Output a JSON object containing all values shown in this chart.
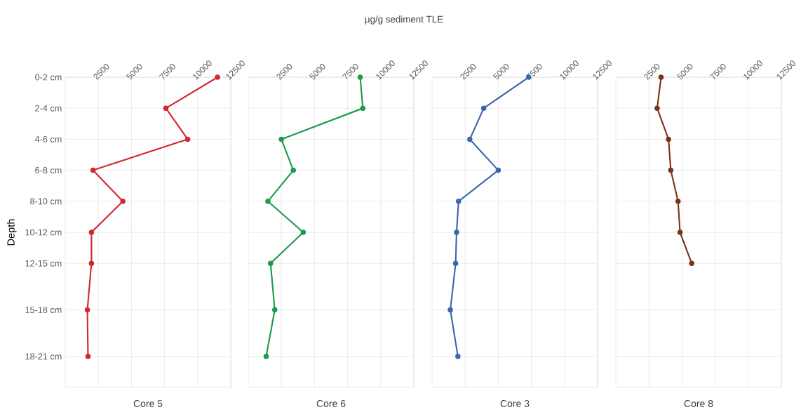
{
  "chart_data": [
    {
      "type": "line",
      "orientation": "horizontal",
      "xlabel": "Core 5",
      "ylabel": "Depth",
      "xlim": [
        0,
        12500
      ],
      "xticks": [
        2500,
        5000,
        7500,
        10000,
        12500
      ],
      "categories": [
        "0-2 cm",
        null,
        "2-4 cm",
        null,
        "4-6 cm",
        null,
        "6-8 cm",
        null,
        "8-10 cm",
        null,
        "10-12 cm",
        null,
        "12-15 cm",
        null,
        null,
        "15-18 cm",
        null,
        null,
        "18-21 cm"
      ],
      "grid": true,
      "marker": "circle",
      "line_style": "solid",
      "series": [
        {
          "color": "#d0282e",
          "values": [
            11500,
            null,
            7600,
            null,
            9250,
            null,
            2100,
            null,
            4350,
            null,
            1980,
            null,
            1980,
            null,
            null,
            1670,
            null,
            null,
            1720
          ]
        }
      ]
    },
    {
      "type": "line",
      "orientation": "horizontal",
      "title": "µg/g sediment TLE",
      "xlabel": "Core 6",
      "xlim": [
        0,
        12500
      ],
      "xticks": [
        2500,
        5000,
        7500,
        10000,
        12500
      ],
      "categories": [
        null,
        null,
        null,
        null,
        null,
        null,
        null,
        null,
        null,
        null,
        null,
        null,
        null,
        null,
        null,
        null,
        null,
        null,
        null
      ],
      "tick_labels": "x",
      "grid": true,
      "marker": "circle",
      "line_style": "solid",
      "series": [
        {
          "color": "#1c9b4b",
          "values": [
            8450,
            null,
            8650,
            null,
            2500,
            null,
            3400,
            null,
            1480,
            null,
            4150,
            null,
            1680,
            null,
            null,
            2000,
            null,
            null,
            1350
          ]
        }
      ]
    },
    {
      "type": "line",
      "orientation": "horizontal",
      "xlabel": "Core 3",
      "xlim": [
        0,
        12500
      ],
      "xticks": [
        2500,
        5000,
        7500,
        10000,
        12500
      ],
      "categories": [
        null,
        null,
        null,
        null,
        null,
        null,
        null,
        null,
        null,
        null,
        null,
        null,
        null,
        null,
        null,
        null,
        null,
        null,
        null
      ],
      "tick_labels": "x",
      "grid": true,
      "marker": "circle",
      "line_style": "solid",
      "series": [
        {
          "color": "#3d66ad",
          "values": [
            7300,
            null,
            3900,
            null,
            2850,
            null,
            5000,
            null,
            2000,
            null,
            1850,
            null,
            1780,
            null,
            null,
            1380,
            null,
            null,
            1950
          ]
        }
      ]
    },
    {
      "type": "line",
      "orientation": "horizontal",
      "xlabel": "Core 8",
      "xlim": [
        0,
        12500
      ],
      "xticks": [
        2500,
        5000,
        7500,
        10000,
        12500
      ],
      "categories": [
        null,
        null,
        null,
        null,
        null,
        null,
        null,
        null,
        null,
        null,
        null,
        null,
        null,
        null,
        null,
        null,
        null,
        null,
        null
      ],
      "tick_labels": "x",
      "grid": true,
      "marker": "circle",
      "line_style": "solid",
      "series": [
        {
          "color": "#7a3518",
          "values": [
            3420,
            null,
            3120,
            null,
            3980,
            null,
            4150,
            null,
            4700,
            null,
            4850,
            null,
            5730,
            null,
            null,
            null,
            null,
            null,
            null
          ]
        }
      ]
    }
  ]
}
